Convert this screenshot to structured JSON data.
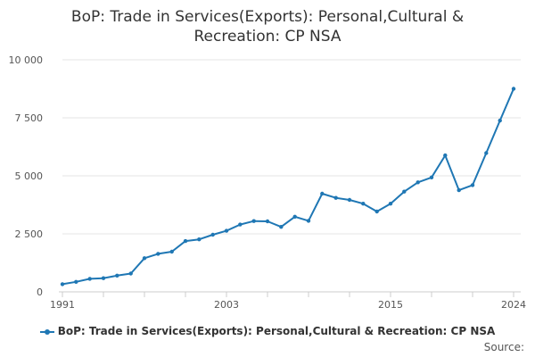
{
  "chart_data": {
    "type": "line",
    "title_lines": [
      "BoP: Trade in Services(Exports): Personal,Cultural &",
      "Recreation: CP NSA"
    ],
    "legend_label": "BoP: Trade in Services(Exports): Personal,Cultural & Recreation: CP NSA",
    "source_label": "Source:",
    "color": "#1f77b4",
    "grid": true,
    "legend_position": "bottom",
    "ylim": [
      0,
      10000
    ],
    "xlim": [
      1991,
      2024
    ],
    "y_ticks": [
      0,
      2500,
      5000,
      7500,
      10000
    ],
    "y_tick_labels": [
      "0",
      "2 500",
      "5 000",
      "7 500",
      "10 000"
    ],
    "x_ticks": [
      1991,
      2003,
      2015,
      2024
    ],
    "x_tick_labels": [
      "1991",
      "2003",
      "2015",
      "2024"
    ],
    "x": [
      1991,
      1992,
      1993,
      1994,
      1995,
      1996,
      1997,
      1998,
      1999,
      2000,
      2001,
      2002,
      2003,
      2004,
      2005,
      2006,
      2007,
      2008,
      2009,
      2010,
      2011,
      2012,
      2013,
      2014,
      2015,
      2016,
      2017,
      2018,
      2019,
      2020,
      2021,
      2022,
      2023,
      2024
    ],
    "values": [
      330,
      430,
      560,
      590,
      700,
      790,
      1450,
      1640,
      1730,
      2190,
      2260,
      2460,
      2630,
      2900,
      3050,
      3040,
      2800,
      3240,
      3060,
      4230,
      4050,
      3960,
      3800,
      3460,
      3800,
      4320,
      4720,
      4930,
      5880,
      4380,
      4600,
      5980,
      7380,
      8750
    ]
  }
}
